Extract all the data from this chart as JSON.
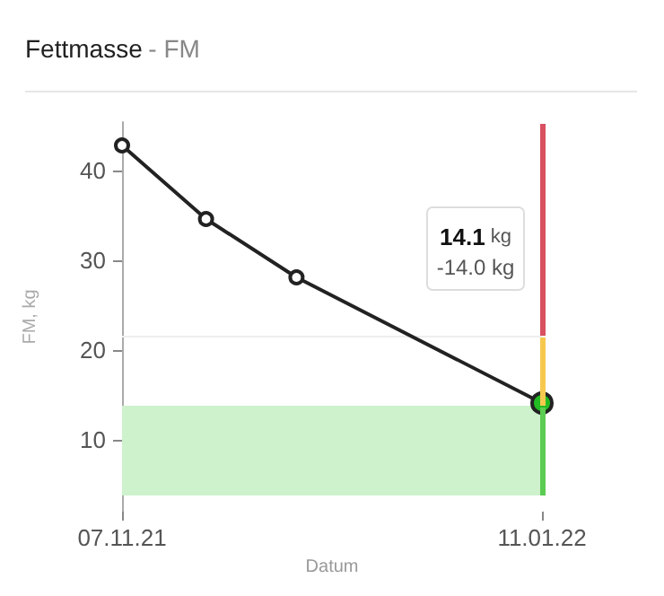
{
  "chart_data": {
    "type": "line",
    "title": "Fettmasse",
    "subtitle": "- FM",
    "xlabel": "Datum",
    "ylabel": "FM, kg",
    "x": [
      "2021-11-07",
      "2021-11-20",
      "2021-12-04",
      "2022-01-11"
    ],
    "series": [
      {
        "color": "#222222",
        "colors": [
          "#ffffff",
          "#ffffff",
          "#ffffff",
          "#22bb22"
        ],
        "values": [
          42.8,
          34.6,
          28.1,
          14.1
        ]
      }
    ],
    "xlim": [
      "2021-11-07",
      "2022-01-11"
    ],
    "xticks": [
      {
        "value": "2021-11-07",
        "label": "07.11.21"
      },
      {
        "value": "2022-01-11",
        "label": "11.01.22"
      }
    ],
    "ylim": [
      2,
      45.4
    ],
    "yticks": [
      10,
      20,
      30,
      40
    ],
    "bands": [
      {
        "axis": "y",
        "from": 3.8,
        "to": 13.8,
        "color": "#cdf2cc"
      }
    ],
    "ref_lines": [
      {
        "axis": "y",
        "value": 21.6,
        "color": "#eeeeee"
      }
    ],
    "annotations": [
      "14.1 kg\n-14.0 kg"
    ],
    "grid": false,
    "marker": "circle",
    "line_style": "solid"
  }
}
